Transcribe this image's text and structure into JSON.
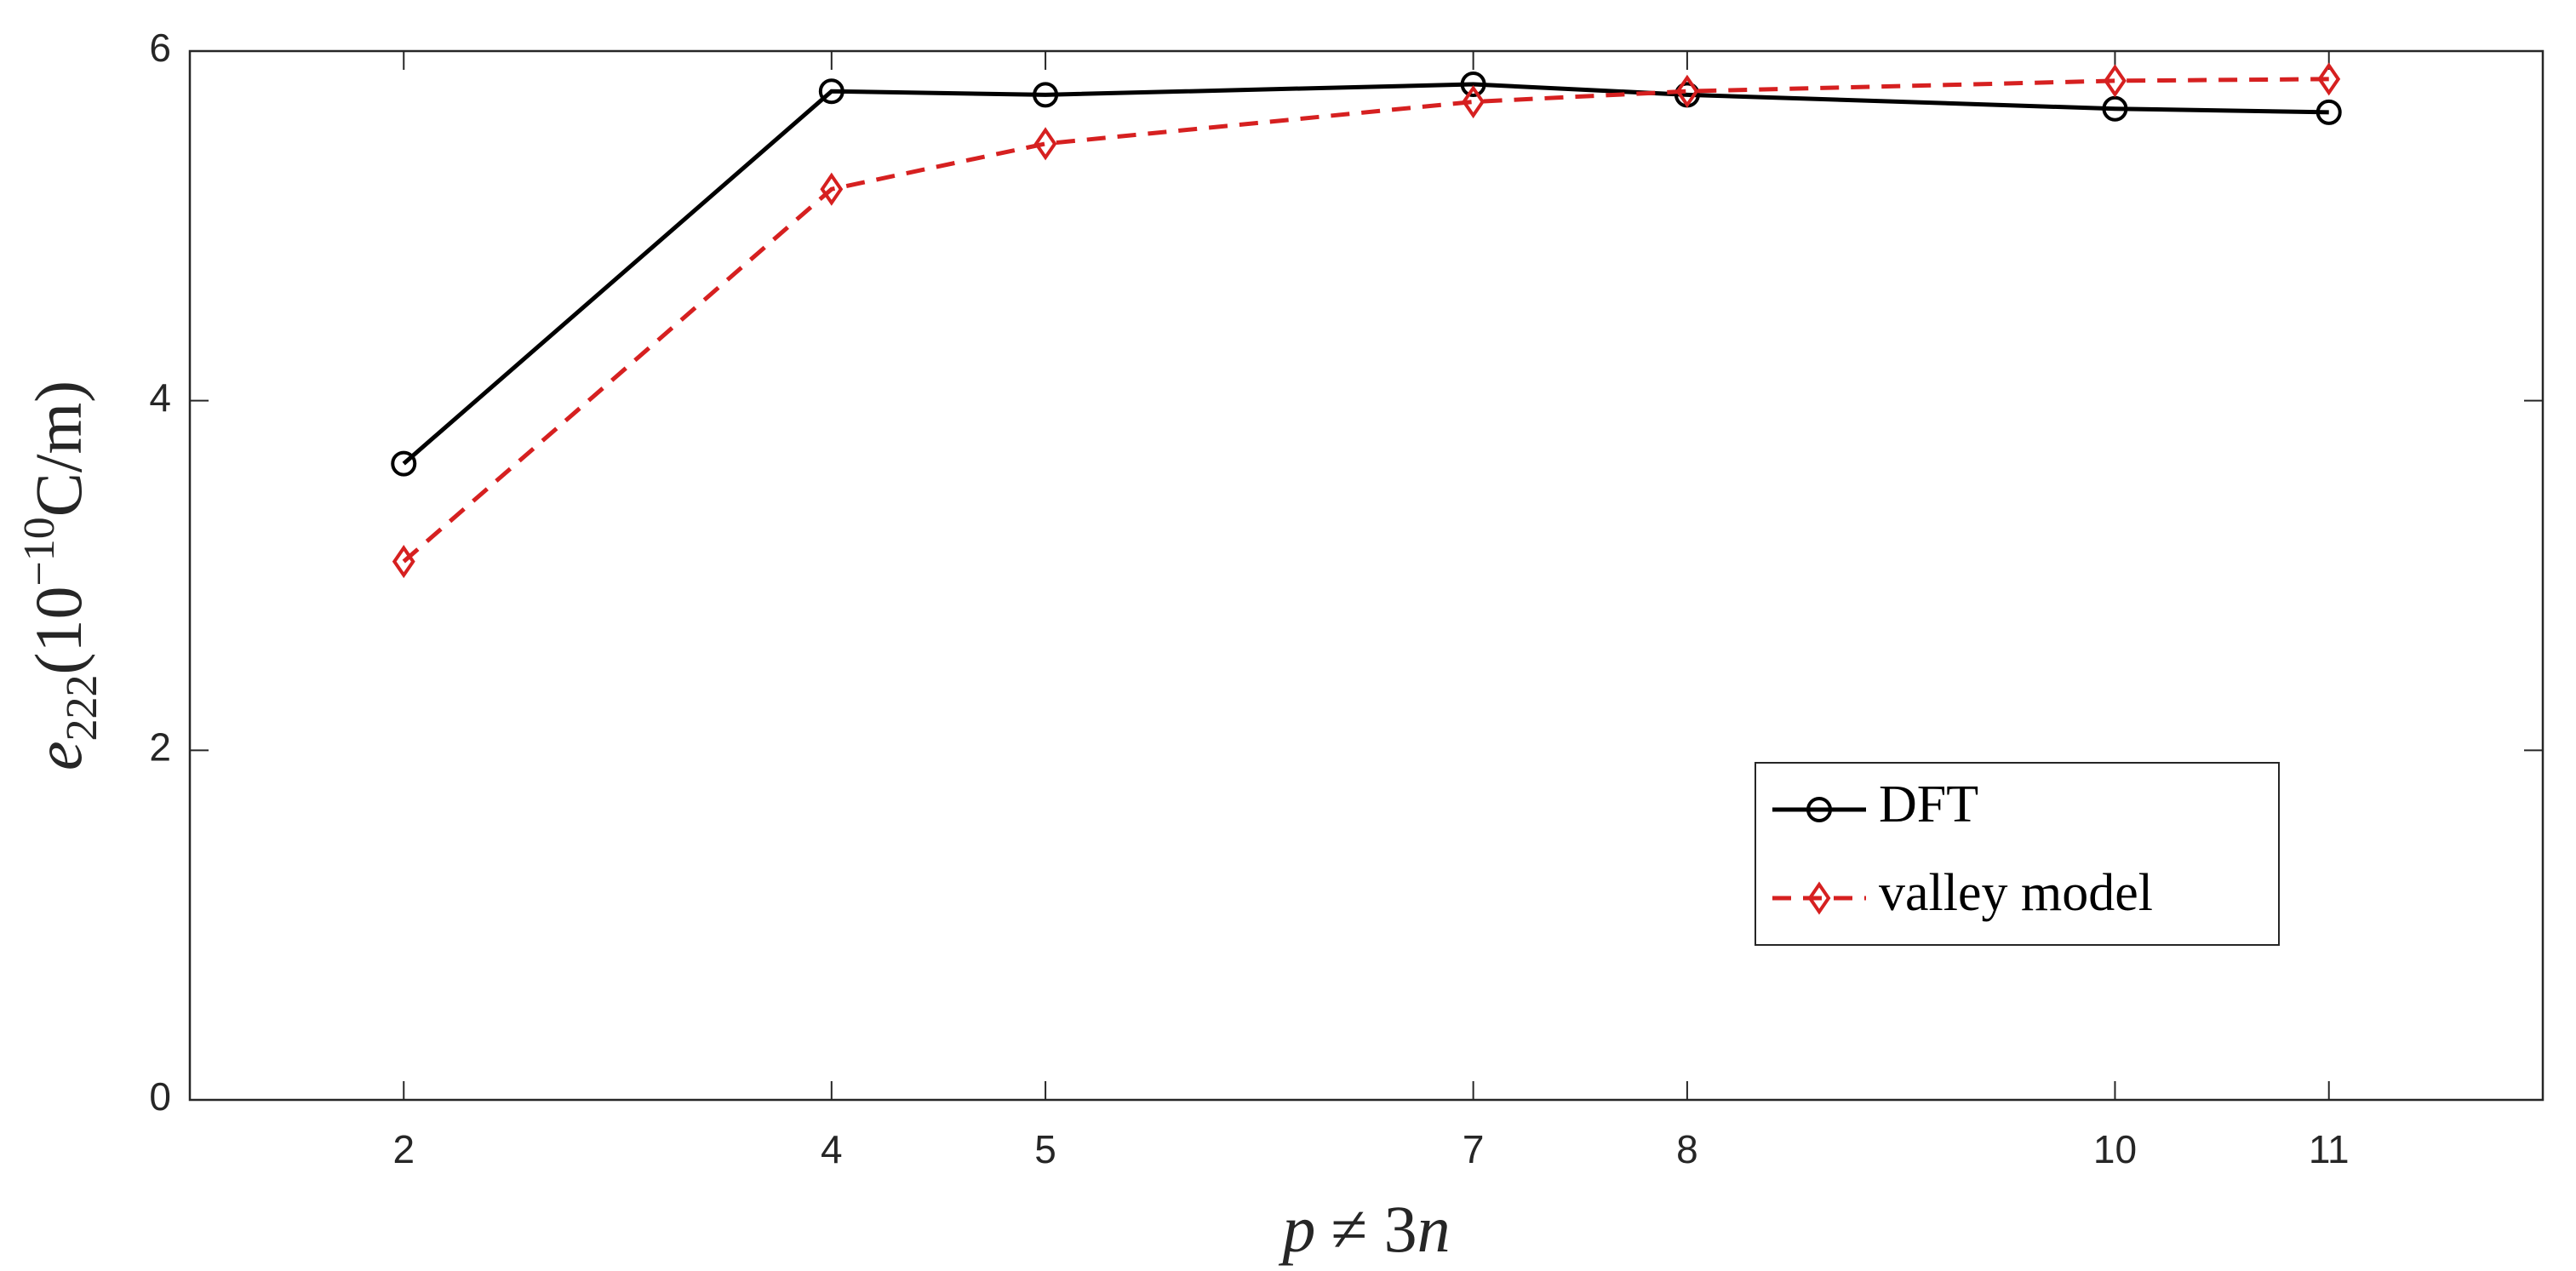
{
  "chart_data": {
    "type": "line",
    "x": [
      2,
      4,
      5,
      7,
      8,
      10,
      11
    ],
    "series": [
      {
        "name": "DFT",
        "color": "#000000",
        "dash": "solid",
        "marker": "circle",
        "values": [
          3.64,
          5.77,
          5.75,
          5.81,
          5.75,
          5.67,
          5.65
        ]
      },
      {
        "name": "valley model",
        "color": "#d62020",
        "dash": "dashed",
        "marker": "diamond",
        "values": [
          3.08,
          5.21,
          5.47,
          5.71,
          5.77,
          5.83,
          5.84
        ]
      }
    ],
    "xlim": [
      1,
      12
    ],
    "xticks": [
      2,
      4,
      5,
      7,
      8,
      10,
      11
    ],
    "ylim": [
      0,
      6
    ],
    "yticks": [
      0,
      2,
      4,
      6
    ],
    "xlabel": {
      "var": "p",
      "rel": "≠ 3",
      "var2": "n"
    },
    "ylabel": {
      "base": "e",
      "sub": "222",
      "open": "(10",
      "sup": "−10",
      "close": "C/m)"
    },
    "grid": false,
    "legend": "lower right"
  }
}
